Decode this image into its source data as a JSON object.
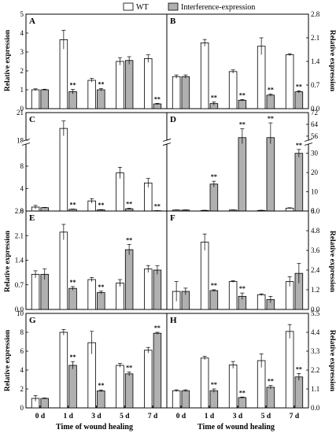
{
  "legend": {
    "items": [
      {
        "label": "WT",
        "fill": "#ffffff"
      },
      {
        "label": "Interference-expression",
        "fill": "#b0b0b0"
      }
    ]
  },
  "axes": {
    "ylabel": "Relative expression",
    "xlabel": "Time of wound healing",
    "categories": [
      "0 d",
      "1 d",
      "3 d",
      "5 d",
      "7 d"
    ]
  },
  "significance_mark": "**",
  "chart_data": [
    {
      "type": "bar",
      "panel": "A",
      "categories": [
        "0 d",
        "1 d",
        "3 d",
        "5 d",
        "7 d"
      ],
      "ylim": [
        0,
        5
      ],
      "yticks": [
        0,
        1,
        2,
        3,
        4,
        5
      ],
      "axis_side": "left",
      "series": [
        {
          "name": "WT",
          "values": [
            1.0,
            3.65,
            1.5,
            2.5,
            2.65
          ],
          "errors": [
            0.05,
            0.5,
            0.1,
            0.2,
            0.2
          ]
        },
        {
          "name": "Interference-expression",
          "values": [
            1.0,
            0.9,
            1.0,
            2.55,
            0.25
          ],
          "errors": [
            0.03,
            0.12,
            0.06,
            0.2,
            0.03
          ]
        }
      ],
      "sig": [
        [
          false,
          false
        ],
        [
          false,
          true
        ],
        [
          false,
          true
        ],
        [
          false,
          false
        ],
        [
          false,
          true
        ]
      ]
    },
    {
      "type": "bar",
      "panel": "B",
      "categories": [
        "0 d",
        "1 d",
        "3 d",
        "5 d",
        "7 d"
      ],
      "ylim": [
        0,
        2.8
      ],
      "yticks": [
        0,
        0.7,
        1.4,
        2.1,
        2.8
      ],
      "axis_side": "right",
      "series": [
        {
          "name": "WT",
          "values": [
            0.95,
            1.95,
            1.1,
            1.85,
            1.6
          ],
          "errors": [
            0.05,
            0.1,
            0.05,
            0.25,
            0.03
          ]
        },
        {
          "name": "Interference-expression",
          "values": [
            0.95,
            0.15,
            0.25,
            0.4,
            0.5
          ],
          "errors": [
            0.05,
            0.05,
            0.02,
            0.03,
            0.03
          ]
        }
      ],
      "sig": [
        [
          false,
          false
        ],
        [
          false,
          true
        ],
        [
          false,
          true
        ],
        [
          false,
          true
        ],
        [
          false,
          true
        ]
      ]
    },
    {
      "type": "bar",
      "panel": "C",
      "categories": [
        "0 d",
        "1 d",
        "3 d",
        "5 d",
        "7 d"
      ],
      "broken_axis": {
        "lower": [
          0,
          12
        ],
        "upper": [
          18,
          21
        ],
        "lower_ticks": [
          0,
          4,
          8
        ],
        "upper_ticks": [
          18,
          21
        ]
      },
      "axis_side": "left",
      "series": [
        {
          "name": "WT",
          "values": [
            0.7,
            19.3,
            1.8,
            6.8,
            5.0
          ],
          "errors": [
            0.3,
            0.8,
            0.4,
            1.0,
            0.8
          ]
        },
        {
          "name": "Interference-expression",
          "values": [
            0.6,
            0.3,
            0.2,
            0.4,
            0.05
          ],
          "errors": [
            0.05,
            0.05,
            0.05,
            0.1,
            0.02
          ]
        }
      ],
      "sig": [
        [
          false,
          false
        ],
        [
          false,
          true
        ],
        [
          false,
          true
        ],
        [
          false,
          true
        ],
        [
          false,
          true
        ]
      ]
    },
    {
      "type": "bar",
      "panel": "D",
      "categories": [
        "0 d",
        "1 d",
        "3 d",
        "5 d",
        "7 d"
      ],
      "broken_axis": {
        "lower": [
          0,
          35
        ],
        "upper": [
          53,
          72
        ],
        "lower_ticks": [
          0,
          10,
          20,
          30
        ],
        "upper_ticks": [
          56,
          64,
          72
        ]
      },
      "axis_side": "right",
      "series": [
        {
          "name": "WT",
          "values": [
            0.5,
            0.3,
            0.5,
            0.3,
            1.5
          ],
          "errors": [
            0.1,
            0.1,
            0.1,
            0.1,
            0.2
          ]
        },
        {
          "name": "Interference-expression",
          "values": [
            0.5,
            14.0,
            55.0,
            55.0,
            30.0
          ],
          "errors": [
            0.1,
            1.5,
            6.0,
            10.0,
            2.0
          ]
        }
      ],
      "sig": [
        [
          false,
          false
        ],
        [
          false,
          true
        ],
        [
          false,
          true
        ],
        [
          false,
          true
        ],
        [
          false,
          true
        ]
      ]
    },
    {
      "type": "bar",
      "panel": "E",
      "categories": [
        "0 d",
        "1 d",
        "3 d",
        "5 d",
        "7 d"
      ],
      "ylim": [
        0,
        2.8
      ],
      "yticks": [
        0,
        0.7,
        1.4,
        2.1,
        2.8
      ],
      "axis_side": "left",
      "series": [
        {
          "name": "WT",
          "values": [
            1.0,
            2.2,
            0.85,
            0.75,
            1.15
          ],
          "errors": [
            0.1,
            0.22,
            0.06,
            0.1,
            0.1
          ]
        },
        {
          "name": "Interference-expression",
          "values": [
            1.0,
            0.6,
            0.48,
            1.7,
            1.12
          ],
          "errors": [
            0.15,
            0.05,
            0.04,
            0.15,
            0.12
          ]
        }
      ],
      "sig": [
        [
          false,
          false
        ],
        [
          false,
          true
        ],
        [
          false,
          true
        ],
        [
          false,
          true
        ],
        [
          false,
          false
        ]
      ]
    },
    {
      "type": "bar",
      "panel": "F",
      "categories": [
        "0 d",
        "1 d",
        "3 d",
        "5 d",
        "7 d"
      ],
      "ylim": [
        0,
        6.0
      ],
      "yticks": [
        0,
        1.2,
        2.4,
        3.6,
        4.8,
        6.0
      ],
      "axis_side": "right",
      "series": [
        {
          "name": "WT",
          "values": [
            1.1,
            4.1,
            1.7,
            0.9,
            1.7
          ],
          "errors": [
            0.6,
            0.5,
            0.05,
            0.05,
            0.3
          ]
        },
        {
          "name": "Interference-expression",
          "values": [
            1.1,
            1.15,
            0.8,
            0.6,
            2.2
          ],
          "errors": [
            0.2,
            0.05,
            0.2,
            0.2,
            0.6
          ]
        }
      ],
      "sig": [
        [
          false,
          false
        ],
        [
          false,
          true
        ],
        [
          false,
          true
        ],
        [
          false,
          false
        ],
        [
          false,
          false
        ]
      ]
    },
    {
      "type": "bar",
      "panel": "G",
      "categories": [
        "0 d",
        "1 d",
        "3 d",
        "5 d",
        "7 d"
      ],
      "ylim": [
        0,
        10
      ],
      "yticks": [
        0,
        2,
        4,
        6,
        8,
        10
      ],
      "axis_side": "left",
      "series": [
        {
          "name": "WT",
          "values": [
            1.0,
            8.0,
            6.9,
            4.5,
            6.1
          ],
          "errors": [
            0.3,
            0.3,
            1.2,
            0.2,
            0.3
          ]
        },
        {
          "name": "Interference-expression",
          "values": [
            1.0,
            4.5,
            1.8,
            3.6,
            7.9
          ],
          "errors": [
            0.05,
            0.4,
            0.1,
            0.2,
            0.1
          ]
        }
      ],
      "sig": [
        [
          false,
          false
        ],
        [
          false,
          true
        ],
        [
          false,
          true
        ],
        [
          false,
          true
        ],
        [
          false,
          true
        ]
      ]
    },
    {
      "type": "bar",
      "panel": "H",
      "categories": [
        "0 d",
        "1 d",
        "3 d",
        "5 d",
        "7 d"
      ],
      "ylim": [
        0,
        5.5
      ],
      "yticks": [
        0,
        1.1,
        2.2,
        3.3,
        4.4,
        5.5
      ],
      "axis_side": "right",
      "series": [
        {
          "name": "WT",
          "values": [
            1.0,
            2.9,
            2.5,
            2.75,
            4.45
          ],
          "errors": [
            0.05,
            0.1,
            0.2,
            0.4,
            0.4
          ]
        },
        {
          "name": "Interference-expression",
          "values": [
            1.0,
            1.0,
            0.6,
            1.2,
            1.8
          ],
          "errors": [
            0.05,
            0.1,
            0.03,
            0.1,
            0.2
          ]
        }
      ],
      "sig": [
        [
          false,
          false
        ],
        [
          false,
          true
        ],
        [
          false,
          true
        ],
        [
          false,
          true
        ],
        [
          false,
          true
        ]
      ]
    }
  ]
}
